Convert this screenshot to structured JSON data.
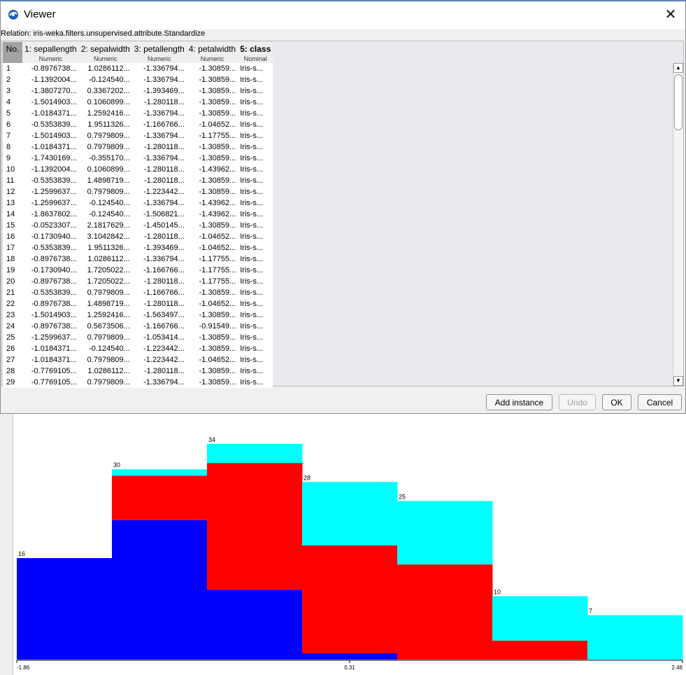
{
  "window": {
    "title": "Viewer"
  },
  "relation": "Relation: iris-weka.filters.unsupervised.attribute.Standardize",
  "table": {
    "no_header": "No.",
    "columns": [
      {
        "name": "1: sepallength",
        "type": "Numeric"
      },
      {
        "name": "2: sepalwidth",
        "type": "Numeric"
      },
      {
        "name": "3: petallength",
        "type": "Numeric"
      },
      {
        "name": "4: petalwidth",
        "type": "Numeric"
      },
      {
        "name": "5: class",
        "type": "Nominal"
      }
    ],
    "rows": [
      [
        "1",
        "-0.8976738...",
        "1.0286112...",
        "-1.336794...",
        "-1.30859...",
        "Iris-s..."
      ],
      [
        "2",
        "-1.1392004...",
        "-0.124540...",
        "-1.336794...",
        "-1.30859...",
        "Iris-s..."
      ],
      [
        "3",
        "-1.3807270...",
        "0.3367202...",
        "-1.393469...",
        "-1.30859...",
        "Iris-s..."
      ],
      [
        "4",
        "-1.5014903...",
        "0.1060899...",
        "-1.280118...",
        "-1.30859...",
        "Iris-s..."
      ],
      [
        "5",
        "-1.0184371...",
        "1.2592416...",
        "-1.336794...",
        "-1.30859...",
        "Iris-s..."
      ],
      [
        "6",
        "-0.5353839...",
        "1.9511326...",
        "-1.166766...",
        "-1.04652...",
        "Iris-s..."
      ],
      [
        "7",
        "-1.5014903...",
        "0.7979809...",
        "-1.336794...",
        "-1.17755...",
        "Iris-s..."
      ],
      [
        "8",
        "-1.0184371...",
        "0.7979809...",
        "-1.280118...",
        "-1.30859...",
        "Iris-s..."
      ],
      [
        "9",
        "-1.7430169...",
        "-0.355170...",
        "-1.336794...",
        "-1.30859...",
        "Iris-s..."
      ],
      [
        "10",
        "-1.1392004...",
        "0.1060899...",
        "-1.280118...",
        "-1.43962...",
        "Iris-s..."
      ],
      [
        "11",
        "-0.5353839...",
        "1.4898719...",
        "-1.280118...",
        "-1.30859...",
        "Iris-s..."
      ],
      [
        "12",
        "-1.2599637...",
        "0.7979809...",
        "-1.223442...",
        "-1.30859...",
        "Iris-s..."
      ],
      [
        "13",
        "-1.2599637...",
        "-0.124540...",
        "-1.336794...",
        "-1.43962...",
        "Iris-s..."
      ],
      [
        "14",
        "-1.8637802...",
        "-0.124540...",
        "-1.506821...",
        "-1.43962...",
        "Iris-s..."
      ],
      [
        "15",
        "-0.0523307...",
        "2.1817629...",
        "-1.450145...",
        "-1.30859...",
        "Iris-s..."
      ],
      [
        "16",
        "-0.1730940...",
        "3.1042842...",
        "-1.280118...",
        "-1.04652...",
        "Iris-s..."
      ],
      [
        "17",
        "-0.5353839...",
        "1.9511326...",
        "-1.393469...",
        "-1.04652...",
        "Iris-s..."
      ],
      [
        "18",
        "-0.8976738...",
        "1.0286112...",
        "-1.336794...",
        "-1.17755...",
        "Iris-s..."
      ],
      [
        "19",
        "-0.1730940...",
        "1.7205022...",
        "-1.166766...",
        "-1.17755...",
        "Iris-s..."
      ],
      [
        "20",
        "-0.8976738...",
        "1.7205022...",
        "-1.280118...",
        "-1.17755...",
        "Iris-s..."
      ],
      [
        "21",
        "-0.5353839...",
        "0.7979809...",
        "-1.166766...",
        "-1.30859...",
        "Iris-s..."
      ],
      [
        "22",
        "-0.8976738...",
        "1.4898719...",
        "-1.280118...",
        "-1.04652...",
        "Iris-s..."
      ],
      [
        "23",
        "-1.5014903...",
        "1.2592416...",
        "-1.563497...",
        "-1.30859...",
        "Iris-s..."
      ],
      [
        "24",
        "-0.8976738...",
        "0.5673506...",
        "-1.166766...",
        "-0.91549...",
        "Iris-s..."
      ],
      [
        "25",
        "-1.2599637...",
        "0.7979809...",
        "-1.053414...",
        "-1.30859...",
        "Iris-s..."
      ],
      [
        "26",
        "-1.0184371...",
        "-0.124540...",
        "-1.223442...",
        "-1.30859...",
        "Iris-s..."
      ],
      [
        "27",
        "-1.0184371...",
        "0.7979809...",
        "-1.223442...",
        "-1.04652...",
        "Iris-s..."
      ],
      [
        "28",
        "-0.7769105...",
        "1.0286112...",
        "-1.280118...",
        "-1.30859...",
        "Iris-s..."
      ],
      [
        "29",
        "-0.7769105...",
        "0.7979809...",
        "-1.336794...",
        "-1.30859...",
        "Iris-s..."
      ]
    ]
  },
  "buttons": {
    "add_instance": "Add instance",
    "undo": "Undo",
    "ok": "OK",
    "cancel": "Cancel"
  },
  "colors": {
    "setosa": "#0000ff",
    "versicolor": "#ff0000",
    "virginica": "#00ffff",
    "header_selected": "#a3a3a3"
  },
  "chart_data": {
    "type": "bar",
    "stacked": true,
    "bins": 7,
    "counts": [
      16,
      30,
      34,
      28,
      25,
      10,
      7
    ],
    "series": [
      {
        "color": "#0000ff",
        "values": [
          16,
          22,
          11,
          1,
          0,
          0,
          0
        ]
      },
      {
        "color": "#ff0000",
        "values": [
          0,
          7,
          20,
          17,
          15,
          3,
          0
        ]
      },
      {
        "color": "#00ffff",
        "values": [
          0,
          1,
          3,
          10,
          10,
          7,
          7
        ]
      }
    ],
    "x_tick_labels": [
      "-1.86",
      "0.31",
      "2.48"
    ],
    "xlim": [
      -1.86,
      2.48
    ],
    "ylim": [
      0,
      34
    ]
  }
}
